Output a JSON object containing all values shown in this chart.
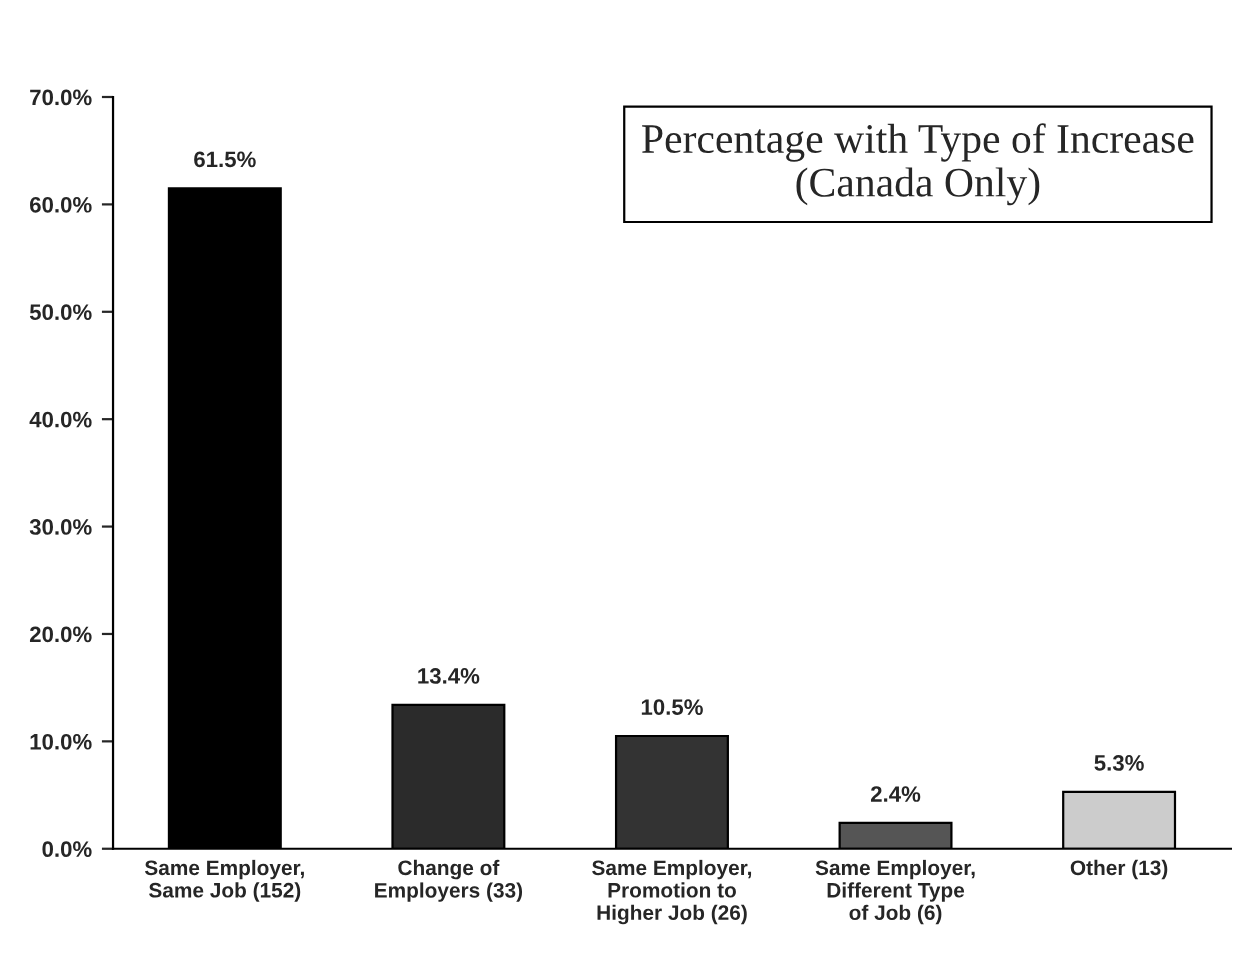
{
  "chart_data": {
    "type": "bar",
    "title": "Percentage with Type of Increase\n(Canada Only)",
    "categories": [
      "Same Employer,\nSame Job (152)",
      "Change of\nEmployers (33)",
      "Same Employer,\nPromotion to\nHigher Job (26)",
      "Same Employer,\nDifferent Type\nof Job (6)",
      "Other (13)"
    ],
    "values": [
      61.5,
      13.4,
      10.5,
      2.4,
      5.3
    ],
    "colors": [
      "#000000",
      "#2b2b2b",
      "#333333",
      "#555555",
      "#cccccc"
    ],
    "value_labels": [
      "61.5%",
      "13.4%",
      "10.5%",
      "2.4%",
      "5.3%"
    ],
    "ylim": [
      0,
      70
    ],
    "yticks": [
      {
        "value": 0,
        "label": "0.0%"
      },
      {
        "value": 10,
        "label": "10.0%"
      },
      {
        "value": 20,
        "label": "20.0%"
      },
      {
        "value": 30,
        "label": "30.0%"
      },
      {
        "value": 40,
        "label": "40.0%"
      },
      {
        "value": 50,
        "label": "50.0%"
      },
      {
        "value": 60,
        "label": "60.0%"
      },
      {
        "value": 70,
        "label": "70.0%"
      }
    ],
    "grid": false,
    "legend": false
  }
}
